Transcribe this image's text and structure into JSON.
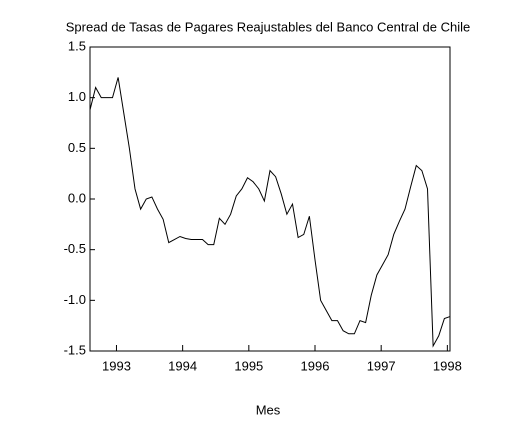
{
  "chart_data": {
    "type": "line",
    "title": "Spread de Tasas de Pagares Reajustables del Banco Central de Chile",
    "x_label": "Mes",
    "x": [
      1992.6,
      1992.685,
      1992.77,
      1992.855,
      1992.94,
      1993.025,
      1993.11,
      1993.195,
      1993.28,
      1993.365,
      1993.45,
      1993.535,
      1993.62,
      1993.705,
      1993.79,
      1993.875,
      1993.96,
      1994.045,
      1994.13,
      1994.215,
      1994.3,
      1994.385,
      1994.47,
      1994.555,
      1994.64,
      1994.725,
      1994.81,
      1994.895,
      1994.98,
      1995.065,
      1995.15,
      1995.235,
      1995.32,
      1995.405,
      1995.49,
      1995.575,
      1995.66,
      1995.745,
      1995.83,
      1995.915,
      1996.0,
      1996.085,
      1996.17,
      1996.255,
      1996.34,
      1996.425,
      1996.51,
      1996.595,
      1996.68,
      1996.765,
      1996.85,
      1996.935,
      1997.02,
      1997.105,
      1997.19,
      1997.275,
      1997.36,
      1997.445,
      1997.53,
      1997.615,
      1997.7,
      1997.785,
      1997.87,
      1997.955,
      1998.04
    ],
    "values": [
      0.88,
      1.1,
      1.0,
      1.0,
      1.0,
      1.2,
      0.85,
      0.5,
      0.1,
      -0.1,
      0.0,
      0.02,
      -0.1,
      -0.2,
      -0.43,
      -0.4,
      -0.37,
      -0.39,
      -0.4,
      -0.4,
      -0.4,
      -0.45,
      -0.45,
      -0.19,
      -0.25,
      -0.15,
      0.03,
      0.1,
      0.21,
      0.17,
      0.1,
      -0.02,
      0.28,
      0.22,
      0.05,
      -0.15,
      -0.05,
      -0.38,
      -0.35,
      -0.17,
      -0.6,
      -1.0,
      -1.1,
      -1.2,
      -1.2,
      -1.3,
      -1.33,
      -1.33,
      -1.2,
      -1.22,
      -0.95,
      -0.75,
      -0.65,
      -0.55,
      -0.35,
      -0.22,
      -0.1,
      0.12,
      0.33,
      0.28,
      0.1,
      -1.45,
      -1.35,
      -1.18,
      -1.16
    ],
    "color": "#000000",
    "xlim": [
      1992.6,
      1998.04
    ],
    "xticks": [
      1993,
      1994,
      1995,
      1996,
      1997,
      1998
    ],
    "ylim": [
      -1.5,
      1.5
    ],
    "yticks": [
      -1.5,
      {
        "value": -1,
        "label": "-1.0"
      },
      -0.5,
      {
        "value": 0,
        "label": "0.0"
      },
      0.5,
      {
        "value": 1,
        "label": "1.0"
      },
      1.5
    ]
  }
}
